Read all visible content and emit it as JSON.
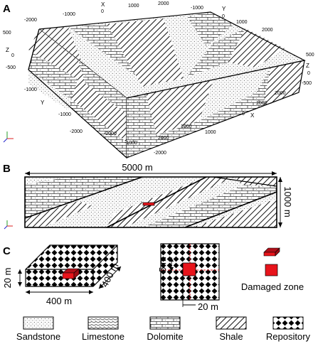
{
  "panels": {
    "a": {
      "letter": "A"
    },
    "b": {
      "letter": "B",
      "width_label": "5000 m",
      "height_label": "1000 m"
    },
    "c": {
      "letter": "C",
      "height_label": "20 m",
      "length_label": "400 m",
      "depth_label": "400 m",
      "offset_label": "5 m",
      "offset2_label": "20 m",
      "damaged_label": "Damaged zone"
    }
  },
  "axes3d": {
    "x_letter": "X",
    "y_letter": "Y",
    "z_letter": "Z",
    "top_x_ticks": [
      "-2000",
      "-1000",
      "0",
      "1000",
      "2000"
    ],
    "top_y_ticks": [
      "-1000",
      "0",
      "1000",
      "2000"
    ],
    "left_z_ticks": [
      "500",
      "0",
      "-500"
    ],
    "right_z_ticks": [
      "500",
      "0",
      "-500"
    ],
    "front_y_ticks": [
      "-1000",
      "-2000"
    ],
    "front_x_ticks": [
      "2000",
      "1000"
    ],
    "bottom_x_ticks": [
      "-2000",
      "-1000",
      "0",
      "1000",
      "2000"
    ],
    "bottom_y_ticks": [
      "2000",
      "1000",
      "0",
      "-1000",
      "-2000"
    ]
  },
  "legend": [
    "Sandstone",
    "Limestone",
    "Dolomite",
    "Shale",
    "Repository"
  ],
  "colors": {
    "damaged_zone": "#e8141b",
    "line": "#000000"
  }
}
